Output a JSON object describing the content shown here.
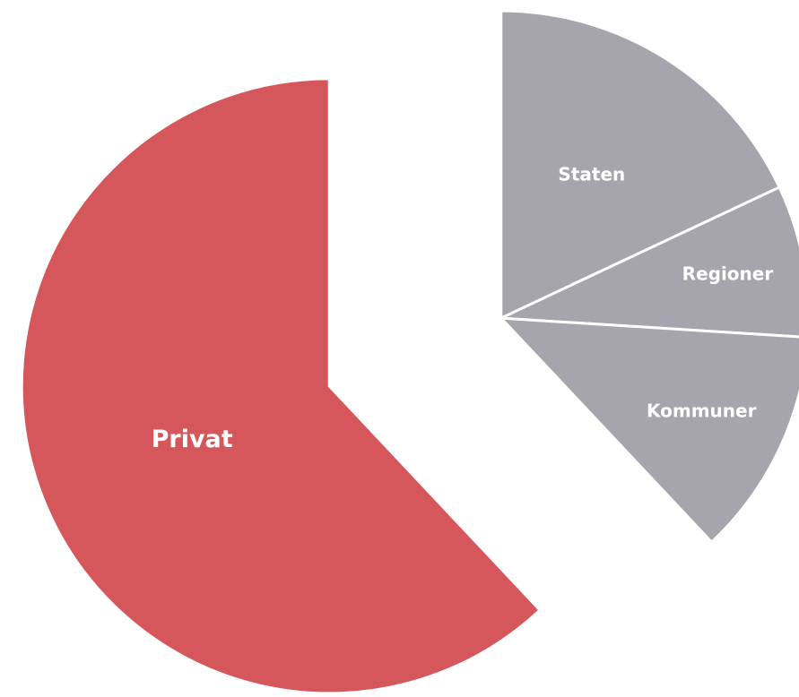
{
  "chart_data": {
    "type": "pie",
    "categories": [
      "Staten",
      "Regioner",
      "Kommuner",
      "Privat"
    ],
    "values": [
      18,
      8,
      12,
      62
    ],
    "colors": [
      "#a6a5ad",
      "#a6a5ad",
      "#a6a5ad",
      "#d6575b"
    ]
  }
}
